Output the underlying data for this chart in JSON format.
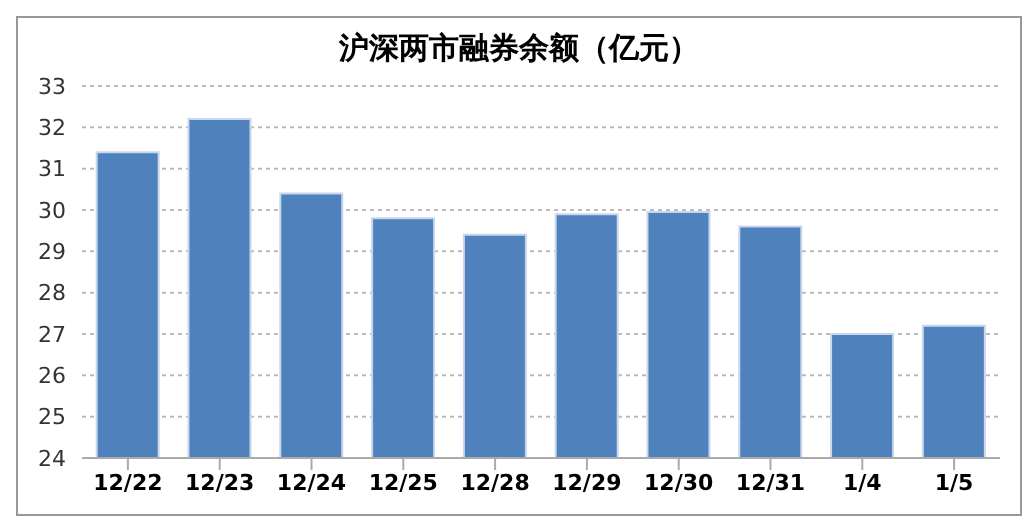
{
  "chart_data": {
    "type": "bar",
    "title": "沪深两市融券余额（亿元）",
    "categories": [
      "12/22",
      "12/23",
      "12/24",
      "12/25",
      "12/28",
      "12/29",
      "12/30",
      "12/31",
      "1/4",
      "1/5"
    ],
    "values": [
      31.4,
      32.2,
      30.4,
      29.8,
      29.4,
      29.9,
      29.95,
      29.6,
      27.0,
      27.2
    ],
    "color": "#4f81bd",
    "ylim": [
      24,
      33
    ],
    "yticks": [
      24,
      25,
      26,
      27,
      28,
      29,
      30,
      31,
      32,
      33
    ],
    "grid": "y"
  }
}
